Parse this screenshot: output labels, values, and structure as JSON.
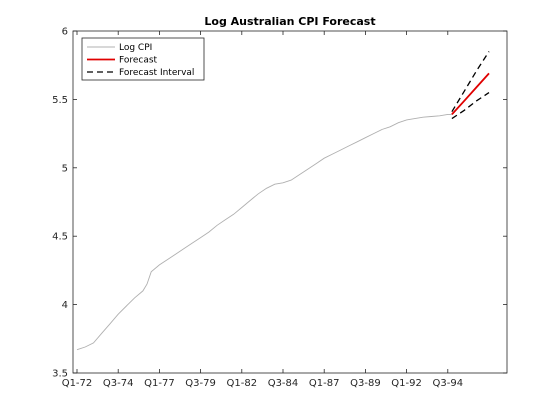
{
  "chart_data": {
    "type": "line",
    "title": "Log Australian CPI Forecast",
    "xlabel": "",
    "ylabel": "",
    "ylim": [
      3.5,
      6
    ],
    "yticks": [
      3.5,
      4,
      4.5,
      5,
      5.5,
      6
    ],
    "xticks": [
      "Q1-72",
      "Q3-74",
      "Q1-77",
      "Q3-79",
      "Q1-82",
      "Q3-84",
      "Q1-87",
      "Q3-89",
      "Q1-92",
      "Q3-94"
    ],
    "grid": false,
    "legend_position": "top-left",
    "x_range_quarters": [
      0,
      100
    ],
    "series": [
      {
        "name": "Log CPI",
        "color": "#b0b0b0",
        "x": [
          0,
          2,
          4,
          6,
          8,
          10,
          12,
          14,
          16,
          17,
          18,
          20,
          22,
          24,
          26,
          28,
          30,
          32,
          34,
          36,
          38,
          40,
          42,
          44,
          46,
          48,
          50,
          52,
          54,
          56,
          58,
          60,
          62,
          64,
          66,
          68,
          70,
          72,
          74,
          76,
          78,
          80,
          82,
          84,
          86,
          88,
          90,
          91
        ],
        "y": [
          3.67,
          3.69,
          3.72,
          3.79,
          3.86,
          3.93,
          3.99,
          4.05,
          4.1,
          4.15,
          4.24,
          4.29,
          4.33,
          4.37,
          4.41,
          4.45,
          4.49,
          4.53,
          4.58,
          4.62,
          4.66,
          4.71,
          4.76,
          4.81,
          4.85,
          4.88,
          4.89,
          4.91,
          4.95,
          4.99,
          5.03,
          5.07,
          5.1,
          5.13,
          5.16,
          5.19,
          5.22,
          5.25,
          5.28,
          5.3,
          5.33,
          5.35,
          5.36,
          5.37,
          5.375,
          5.38,
          5.39,
          5.39
        ]
      },
      {
        "name": "Forecast",
        "color": "#e00000",
        "x": [
          91,
          94,
          97,
          100
        ],
        "y": [
          5.39,
          5.49,
          5.59,
          5.69
        ]
      },
      {
        "name": "Forecast Interval",
        "color": "#000000",
        "upper": {
          "x": [
            91,
            94,
            97,
            100
          ],
          "y": [
            5.41,
            5.56,
            5.71,
            5.85
          ]
        },
        "lower": {
          "x": [
            91,
            94,
            97,
            100
          ],
          "y": [
            5.36,
            5.42,
            5.49,
            5.55
          ]
        }
      }
    ]
  }
}
